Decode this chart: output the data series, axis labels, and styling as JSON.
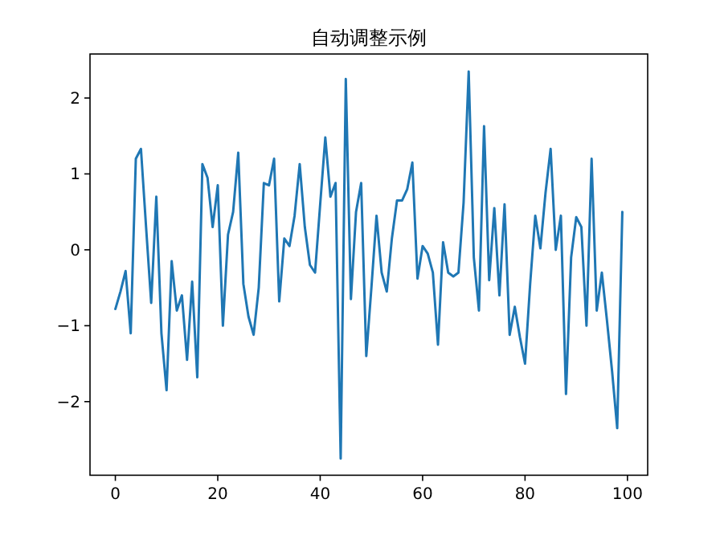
{
  "chart_data": {
    "type": "line",
    "title": "自动调整示例",
    "x": [
      0,
      1,
      2,
      3,
      4,
      5,
      6,
      7,
      8,
      9,
      10,
      11,
      12,
      13,
      14,
      15,
      16,
      17,
      18,
      19,
      20,
      21,
      22,
      23,
      24,
      25,
      26,
      27,
      28,
      29,
      30,
      31,
      32,
      33,
      34,
      35,
      36,
      37,
      38,
      39,
      40,
      41,
      42,
      43,
      44,
      45,
      46,
      47,
      48,
      49,
      50,
      51,
      52,
      53,
      54,
      55,
      56,
      57,
      58,
      59,
      60,
      61,
      62,
      63,
      64,
      65,
      66,
      67,
      68,
      69,
      70,
      71,
      72,
      73,
      74,
      75,
      76,
      77,
      78,
      79,
      80,
      81,
      82,
      83,
      84,
      85,
      86,
      87,
      88,
      89,
      90,
      91,
      92,
      93,
      94,
      95,
      96,
      97,
      98,
      99
    ],
    "series": [
      {
        "color": "#1f77b4",
        "values": [
          -0.78,
          -0.55,
          -0.28,
          -1.1,
          1.2,
          1.33,
          0.3,
          -0.7,
          0.7,
          -1.1,
          -1.85,
          -0.15,
          -0.8,
          -0.6,
          -1.45,
          -0.42,
          -1.68,
          1.13,
          0.95,
          0.3,
          0.85,
          -1.0,
          0.2,
          0.5,
          1.28,
          -0.45,
          -0.88,
          -1.12,
          -0.5,
          0.88,
          0.85,
          1.2,
          -0.68,
          0.15,
          0.05,
          0.45,
          1.13,
          0.3,
          -0.2,
          -0.3,
          0.6,
          1.48,
          0.7,
          0.88,
          -2.75,
          2.25,
          -0.65,
          0.5,
          0.88,
          -1.4,
          -0.5,
          0.45,
          -0.3,
          -0.55,
          0.15,
          0.65,
          0.65,
          0.8,
          1.15,
          -0.38,
          0.05,
          -0.05,
          -0.3,
          -1.25,
          0.1,
          -0.3,
          -0.35,
          -0.3,
          0.62,
          2.35,
          -0.1,
          -0.8,
          1.63,
          -0.4,
          0.55,
          -0.6,
          0.6,
          -1.12,
          -0.75,
          -1.15,
          -1.5,
          -0.45,
          0.45,
          0.02,
          0.75,
          1.33,
          0.0,
          0.45,
          -1.9,
          -0.1,
          0.43,
          0.3,
          -1.0,
          1.2,
          -0.8,
          -0.3,
          -0.93,
          -1.6,
          -2.35,
          0.5
        ]
      }
    ],
    "xlim": [
      -4.95,
      103.95
    ],
    "ylim": [
      -2.97,
      2.58
    ],
    "xticks": [
      0,
      20,
      40,
      60,
      80,
      100
    ],
    "yticks": [
      -2,
      -1,
      0,
      1,
      2
    ]
  }
}
